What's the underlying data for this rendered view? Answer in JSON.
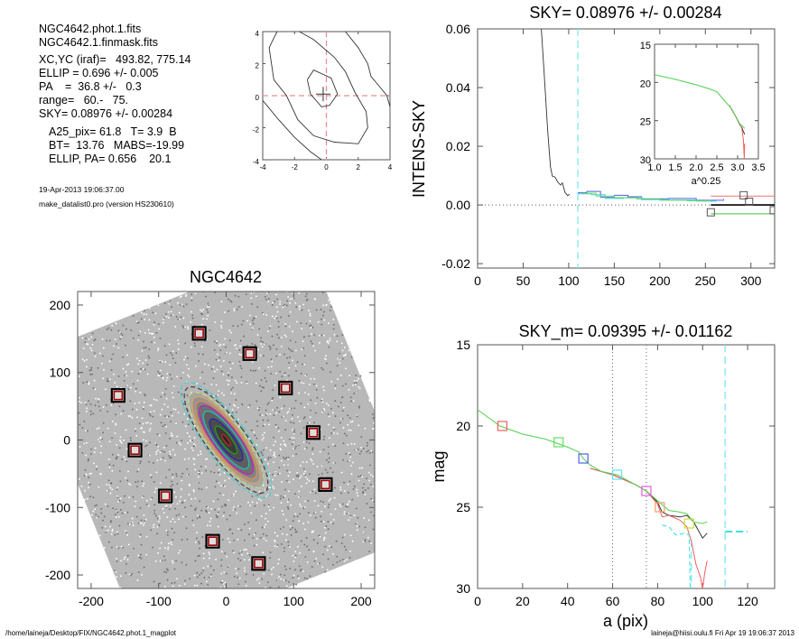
{
  "info": {
    "lines_top": [
      "NGC4642.phot.1.fits",
      "NGC4642.1.finmask.fits"
    ],
    "lines_mid": [
      "XC,YC (iraf)=   493.82, 775.14",
      "ELLIP = 0.696 +/- 0.005",
      "PA    =  36.8 +/-   0.3",
      "range=   60.-   75.",
      "SKY= 0.08976 +/- 0.00284"
    ],
    "lines_low": [
      "A25_pix= 61.8   T= 3.9  B",
      "BT=  13.76   MABS=-19.99",
      "ELLIP, PA= 0.656    20.1"
    ],
    "date": "19-Apr-2013 19:06:37.00",
    "program": "make_datalist0.pro (version HS230610)"
  },
  "footer": {
    "left": "/home/laineja/Desktop/FIX/NGC4642.phot.1_magplot",
    "right": "laineja@hiisi.oulu.fi  Fri Apr 19 19:06:37 2013"
  },
  "chart_data": [
    {
      "id": "center-contour",
      "type": "line",
      "title": "",
      "xlim": [
        -4,
        4
      ],
      "ylim": [
        -4,
        4
      ],
      "xticks": [
        -4,
        -2,
        0,
        2,
        4
      ],
      "yticks": [
        -4,
        -2,
        0,
        2,
        4
      ],
      "colors": {
        "contour": "#333333",
        "crosshair": "#e89090"
      },
      "contours": [
        [
          [
            -1.2,
            1.0
          ],
          [
            -0.8,
            1.6
          ],
          [
            0.3,
            1.1
          ],
          [
            0.7,
            0.1
          ],
          [
            0.2,
            -0.6
          ],
          [
            -0.3,
            -0.7
          ],
          [
            -1.0,
            0.1
          ],
          [
            -1.2,
            1.0
          ]
        ],
        [
          [
            -3.1,
            4
          ],
          [
            -3.6,
            3
          ],
          [
            -3.3,
            1
          ],
          [
            -2.5,
            0
          ],
          [
            -1.8,
            -1.5
          ],
          [
            -0.8,
            -2.5
          ],
          [
            0.5,
            -2.9
          ],
          [
            2.0,
            -3.0
          ],
          [
            2.6,
            -2.0
          ],
          [
            2.5,
            -1.0
          ],
          [
            1.8,
            0.2
          ],
          [
            1.2,
            1.5
          ],
          [
            0.5,
            2.4
          ],
          [
            -0.8,
            3.5
          ],
          [
            -1.7,
            4
          ]
        ],
        [
          [
            -4,
            -0.3
          ],
          [
            -3,
            -1.5
          ],
          [
            -2,
            -2.6
          ],
          [
            -1,
            -3.5
          ],
          [
            -0.3,
            -4
          ]
        ],
        [
          [
            1.2,
            4
          ],
          [
            2,
            3
          ],
          [
            2.6,
            2
          ],
          [
            2.8,
            1.2
          ],
          [
            3.4,
            0.5
          ],
          [
            3.8,
            0
          ],
          [
            4,
            -0.7
          ]
        ]
      ],
      "center": [
        -0.2,
        0.1
      ]
    },
    {
      "id": "intens-sky",
      "type": "line",
      "title": "SKY= 0.08976 +/- 0.00284",
      "xlabel": "",
      "ylabel": "INTENS-SKY",
      "xlim": [
        0,
        326
      ],
      "ylim": [
        -0.0215,
        0.06
      ],
      "xticks": [
        0,
        50,
        100,
        150,
        200,
        250,
        300
      ],
      "yticks": [
        -0.02,
        0.0,
        0.02,
        0.04,
        0.06
      ],
      "ytick_labels": [
        "-0.02",
        "0.00",
        "0.02",
        "0.04",
        "0.06"
      ],
      "sky_radius": 110,
      "profile": {
        "color": "#333333",
        "x": [
          70,
          73,
          77,
          80,
          82,
          85,
          88,
          91,
          93,
          96,
          99,
          101
        ],
        "y": [
          0.06,
          0.045,
          0.025,
          0.013,
          0.0098,
          0.0095,
          0.0078,
          0.0068,
          0.0075,
          0.0042,
          0.0032,
          0.0037
        ]
      },
      "steps": [
        {
          "color": "#5060e0",
          "x": [
            110,
            120,
            135,
            150,
            165,
            180,
            210,
            240,
            270
          ],
          "y": [
            0.0042,
            0.0046,
            0.0026,
            0.0033,
            0.0028,
            0.0021,
            0.0022,
            0.0016,
            0.002
          ]
        },
        {
          "color": "#40d0e0",
          "x": [
            110,
            125,
            140,
            160,
            180,
            210,
            240,
            262
          ],
          "y": [
            0.0038,
            0.0035,
            0.0022,
            0.0024,
            0.0018,
            0.0017,
            0.0013,
            0.0018
          ]
        },
        {
          "color": "#60e060",
          "x": [
            115,
            130,
            150,
            175,
            200,
            230,
            255
          ],
          "y": [
            0.004,
            0.003,
            0.0025,
            0.002,
            0.0016,
            0.0014,
            0.0017
          ]
        }
      ],
      "sky_levels": [
        {
          "color": "#f08080",
          "y": 0.003,
          "x": [
            256,
            326
          ]
        },
        {
          "color": "#000000",
          "y": 0.0,
          "x": [
            256,
            326
          ]
        },
        {
          "color": "#60d060",
          "y": -0.003,
          "x": [
            256,
            326
          ]
        }
      ],
      "sky_points": {
        "x": [
          256,
          292,
          298,
          325
        ],
        "y": [
          -0.0025,
          0.0033,
          0.0011,
          -0.0018
        ]
      },
      "inset": {
        "xlabel": "a^0.25",
        "xlim": [
          1.0,
          3.5
        ],
        "ylim": [
          15,
          30
        ],
        "xticks": [
          1.0,
          1.5,
          2.0,
          2.5,
          3.0,
          3.5
        ],
        "xtick_labels": [
          "1.0",
          "1.5",
          "2.0",
          "2.5",
          "3.0",
          "3.5"
        ],
        "yticks": [
          15,
          20,
          25,
          30
        ],
        "series": [
          {
            "color": "#333333",
            "x": [
              2.8,
              2.95,
              3.05,
              3.1,
              3.17
            ],
            "y": [
              23.0,
              24.4,
              25.5,
              25.9,
              26.8
            ]
          },
          {
            "color": "#f06060",
            "x": [
              2.8,
              2.95,
              3.05,
              3.1,
              3.14,
              3.16,
              3.17
            ],
            "y": [
              23.0,
              24.4,
              25.4,
              26.0,
              27.5,
              30,
              28
            ]
          },
          {
            "color": "#50d050",
            "x": [
              1.0,
              1.5,
              2.0,
              2.3,
              2.5,
              2.7,
              2.85,
              2.95,
              3.05,
              3.17
            ],
            "y": [
              19.0,
              19.6,
              20.3,
              20.8,
              21.2,
              22.5,
              23.4,
              24.4,
              25.4,
              26.0
            ]
          }
        ]
      }
    },
    {
      "id": "galaxy-image",
      "type": "scatter",
      "title": "NGC4642",
      "xlim": [
        -220,
        220
      ],
      "ylim": [
        -220,
        220
      ],
      "xticks": [
        -200,
        -100,
        0,
        100,
        200
      ],
      "yticks": [
        -200,
        -100,
        0,
        100,
        200
      ],
      "sky_boxes": {
        "x": [
          -40,
          35,
          -160,
          88,
          129,
          -135,
          147,
          -90,
          -20,
          48
        ],
        "y": [
          158,
          128,
          66,
          77,
          11,
          -15,
          -66,
          -83,
          -150,
          -183
        ],
        "color": "#a00000"
      },
      "isophotes": {
        "pa_deg": 36.8,
        "axis_ratio": 0.3,
        "semi_major": [
          10,
          25,
          38,
          52,
          62,
          70,
          78,
          86,
          96,
          104
        ],
        "colors": [
          "#d02020",
          "#20a020",
          "#2020c0",
          "#20c0c0",
          "#c020c0",
          "#e09050",
          "#e0a060",
          "#c0e060",
          "#404040",
          "#40d0d0"
        ]
      }
    },
    {
      "id": "mag-profile",
      "type": "line",
      "title": "SKY_m=  0.09395 +/- 0.01162",
      "xlabel": "a (pix)",
      "ylabel": "mag",
      "xlim": [
        0,
        132
      ],
      "ylim": [
        15,
        30
      ],
      "xticks": [
        0,
        20,
        40,
        60,
        80,
        100,
        120
      ],
      "yticks": [
        15,
        20,
        25,
        30
      ],
      "range_lines": [
        60,
        75
      ],
      "sky_radii": [
        95,
        110
      ],
      "series": [
        {
          "color": "#333333",
          "x": [
            50,
            60,
            70,
            75,
            80,
            82,
            85,
            90,
            93,
            96,
            100,
            102
          ],
          "y": [
            22.6,
            23.0,
            23.6,
            24.0,
            24.7,
            25.3,
            25.5,
            25.6,
            25.5,
            25.9,
            26.9,
            26.6
          ]
        },
        {
          "color": "#f06060",
          "x": [
            50,
            60,
            70,
            75,
            80,
            82,
            85,
            90,
            93,
            95,
            97,
            99,
            100,
            100.5,
            101,
            102
          ],
          "y": [
            22.6,
            23.0,
            23.6,
            24.0,
            24.8,
            25.6,
            25.5,
            25.8,
            26.2,
            27.1,
            28.5,
            29.3,
            30,
            29.5,
            29.0,
            28.3
          ]
        },
        {
          "color": "#50d050",
          "x": [
            0,
            5,
            10,
            20,
            30,
            40,
            45,
            47,
            50,
            55,
            62,
            70,
            75,
            80,
            85,
            90,
            93,
            96,
            100,
            102
          ],
          "y": [
            19.0,
            19.5,
            20.0,
            20.5,
            20.8,
            21.3,
            21.6,
            22.0,
            22.4,
            22.8,
            23.0,
            23.6,
            24.0,
            24.6,
            25.2,
            25.3,
            25.4,
            25.9,
            26.0,
            25.9
          ]
        }
      ],
      "dashed_series": {
        "color": "#40e0e0",
        "x": [
          82,
          85,
          88,
          92,
          94,
          94.5
        ],
        "y": [
          26.1,
          26.2,
          26.7,
          26.6,
          26.7,
          30
        ]
      },
      "sky_mag": {
        "color": "#40e0e0",
        "y": 26.5,
        "x": [
          110,
          120
        ]
      },
      "markers": {
        "x": [
          11,
          36,
          47,
          62,
          75,
          81,
          94
        ],
        "y": [
          20,
          21,
          22,
          23,
          24,
          25,
          26
        ],
        "colors": [
          "#f06060",
          "#60e060",
          "#5060e0",
          "#60e0f0",
          "#e060e0",
          "#f0a060",
          "#c0e040"
        ]
      }
    }
  ]
}
